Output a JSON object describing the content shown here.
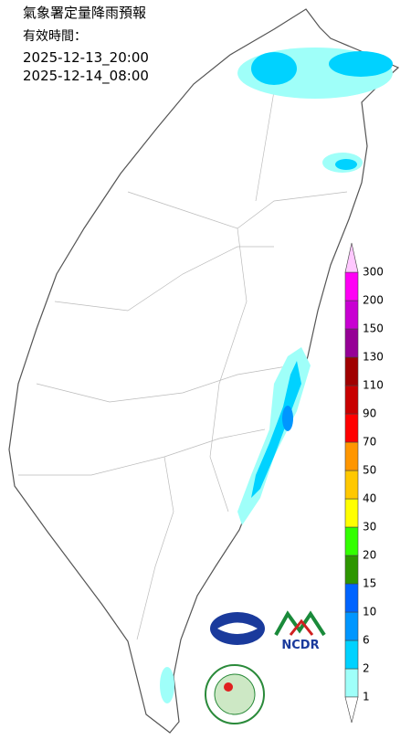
{
  "header": {
    "title": "氣象署定量降雨預報",
    "valid_label": "有效時間：",
    "start": "2025-12-13_20:00",
    "end": "2025-12-14_08:00"
  },
  "legend": {
    "levels": [
      {
        "value": 1,
        "color": "#9ffff9"
      },
      {
        "value": 2,
        "color": "#00d2ff"
      },
      {
        "value": 6,
        "color": "#0096ff"
      },
      {
        "value": 10,
        "color": "#0064ff"
      },
      {
        "value": 15,
        "color": "#2d9600"
      },
      {
        "value": 20,
        "color": "#32ff00"
      },
      {
        "value": 30,
        "color": "#ffff00"
      },
      {
        "value": 40,
        "color": "#ffc800"
      },
      {
        "value": 50,
        "color": "#ff9600"
      },
      {
        "value": 70,
        "color": "#ff0000"
      },
      {
        "value": 90,
        "color": "#c80000"
      },
      {
        "value": 110,
        "color": "#a00000"
      },
      {
        "value": 130,
        "color": "#960096"
      },
      {
        "value": 150,
        "color": "#c800d2"
      },
      {
        "value": 200,
        "color": "#ff00f5"
      },
      {
        "value": 300,
        "color": "#ffc8ff"
      }
    ]
  },
  "logos": {
    "ncdr": "NCDR"
  }
}
